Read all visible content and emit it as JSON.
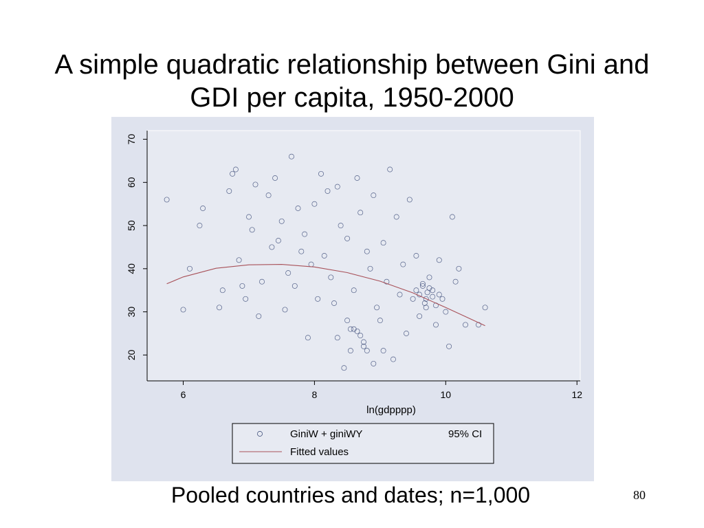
{
  "slide": {
    "title": "A simple quadratic relationship between Gini and GDI per capita, 1950-2000",
    "caption": "Pooled countries and dates; n=1,000",
    "page_number": "80"
  },
  "chart_data": {
    "type": "scatter",
    "title": "",
    "xlabel": "ln(gdpppp)",
    "ylabel": "",
    "xlim": [
      5.45,
      12.05
    ],
    "ylim": [
      14,
      72
    ],
    "xticks": [
      6,
      8,
      10,
      12
    ],
    "yticks": [
      20,
      30,
      40,
      50,
      60,
      70
    ],
    "grid": false,
    "marker": "hollow-circle",
    "colors": {
      "panel_bg": "#dfe3ee",
      "plot_bg": "#e7eaf2",
      "points": "#2e3f6e",
      "fit": "#a85058"
    },
    "legend": {
      "placement": "bottom",
      "entries": [
        "GiniW + giniWY",
        "95% CI",
        "Fitted values"
      ]
    },
    "series": [
      {
        "name": "GiniW + giniWY",
        "kind": "points",
        "points": [
          [
            5.75,
            56
          ],
          [
            6.0,
            30.5
          ],
          [
            6.1,
            40
          ],
          [
            6.25,
            50
          ],
          [
            6.3,
            54
          ],
          [
            6.55,
            31
          ],
          [
            6.6,
            35
          ],
          [
            6.7,
            58
          ],
          [
            6.75,
            62
          ],
          [
            6.8,
            63
          ],
          [
            6.85,
            42
          ],
          [
            6.9,
            36
          ],
          [
            6.95,
            33
          ],
          [
            7.0,
            52
          ],
          [
            7.05,
            49
          ],
          [
            7.1,
            59.5
          ],
          [
            7.15,
            29
          ],
          [
            7.2,
            37
          ],
          [
            7.3,
            57
          ],
          [
            7.35,
            45
          ],
          [
            7.4,
            61
          ],
          [
            7.45,
            46.5
          ],
          [
            7.5,
            51
          ],
          [
            7.55,
            30.5
          ],
          [
            7.6,
            39
          ],
          [
            7.65,
            66
          ],
          [
            7.7,
            36
          ],
          [
            7.75,
            54
          ],
          [
            7.8,
            44
          ],
          [
            7.85,
            48
          ],
          [
            7.9,
            24
          ],
          [
            7.95,
            41
          ],
          [
            8.0,
            55
          ],
          [
            8.05,
            33
          ],
          [
            8.1,
            62
          ],
          [
            8.15,
            43
          ],
          [
            8.2,
            58
          ],
          [
            8.25,
            38
          ],
          [
            8.3,
            32
          ],
          [
            8.35,
            59
          ],
          [
            8.4,
            50
          ],
          [
            8.45,
            17
          ],
          [
            8.5,
            47
          ],
          [
            8.55,
            26
          ],
          [
            8.6,
            35
          ],
          [
            8.65,
            61
          ],
          [
            8.7,
            53
          ],
          [
            8.75,
            22
          ],
          [
            8.8,
            44
          ],
          [
            8.85,
            40
          ],
          [
            8.9,
            57
          ],
          [
            8.95,
            31
          ],
          [
            9.0,
            28
          ],
          [
            9.05,
            46
          ],
          [
            9.1,
            37
          ],
          [
            9.15,
            63
          ],
          [
            9.2,
            19
          ],
          [
            9.25,
            52
          ],
          [
            9.3,
            34
          ],
          [
            9.35,
            41
          ],
          [
            9.4,
            25
          ],
          [
            9.45,
            56
          ],
          [
            9.5,
            33
          ],
          [
            9.55,
            43
          ],
          [
            9.6,
            29
          ],
          [
            9.65,
            36
          ],
          [
            9.7,
            31
          ],
          [
            9.75,
            38
          ],
          [
            9.8,
            35
          ],
          [
            9.85,
            27
          ],
          [
            9.9,
            42
          ],
          [
            9.95,
            33
          ],
          [
            10.0,
            30
          ],
          [
            10.05,
            22
          ],
          [
            10.1,
            52
          ],
          [
            10.15,
            37
          ],
          [
            10.2,
            40
          ],
          [
            10.3,
            27
          ],
          [
            10.5,
            27
          ],
          [
            10.6,
            31
          ],
          [
            8.7,
            24.5
          ],
          [
            8.65,
            25.5
          ],
          [
            8.75,
            23
          ],
          [
            8.6,
            26
          ],
          [
            8.55,
            21
          ],
          [
            8.8,
            21
          ],
          [
            8.9,
            18
          ],
          [
            9.05,
            21
          ],
          [
            8.35,
            24
          ],
          [
            8.5,
            28
          ],
          [
            9.7,
            33
          ],
          [
            9.72,
            34.5
          ],
          [
            9.68,
            32
          ],
          [
            9.75,
            35.5
          ],
          [
            9.8,
            33.5
          ],
          [
            9.6,
            34
          ],
          [
            9.85,
            31.5
          ],
          [
            9.65,
            36.5
          ],
          [
            9.9,
            34
          ],
          [
            9.55,
            35
          ]
        ]
      },
      {
        "name": "Fitted values",
        "kind": "line",
        "x": [
          5.75,
          6.0,
          6.5,
          7.0,
          7.5,
          8.0,
          8.5,
          9.0,
          9.5,
          10.0,
          10.3,
          10.6
        ],
        "y": [
          36.5,
          38.1,
          40.1,
          40.9,
          41.0,
          40.4,
          39.1,
          37.1,
          34.4,
          31.0,
          28.9,
          26.8
        ]
      }
    ]
  }
}
